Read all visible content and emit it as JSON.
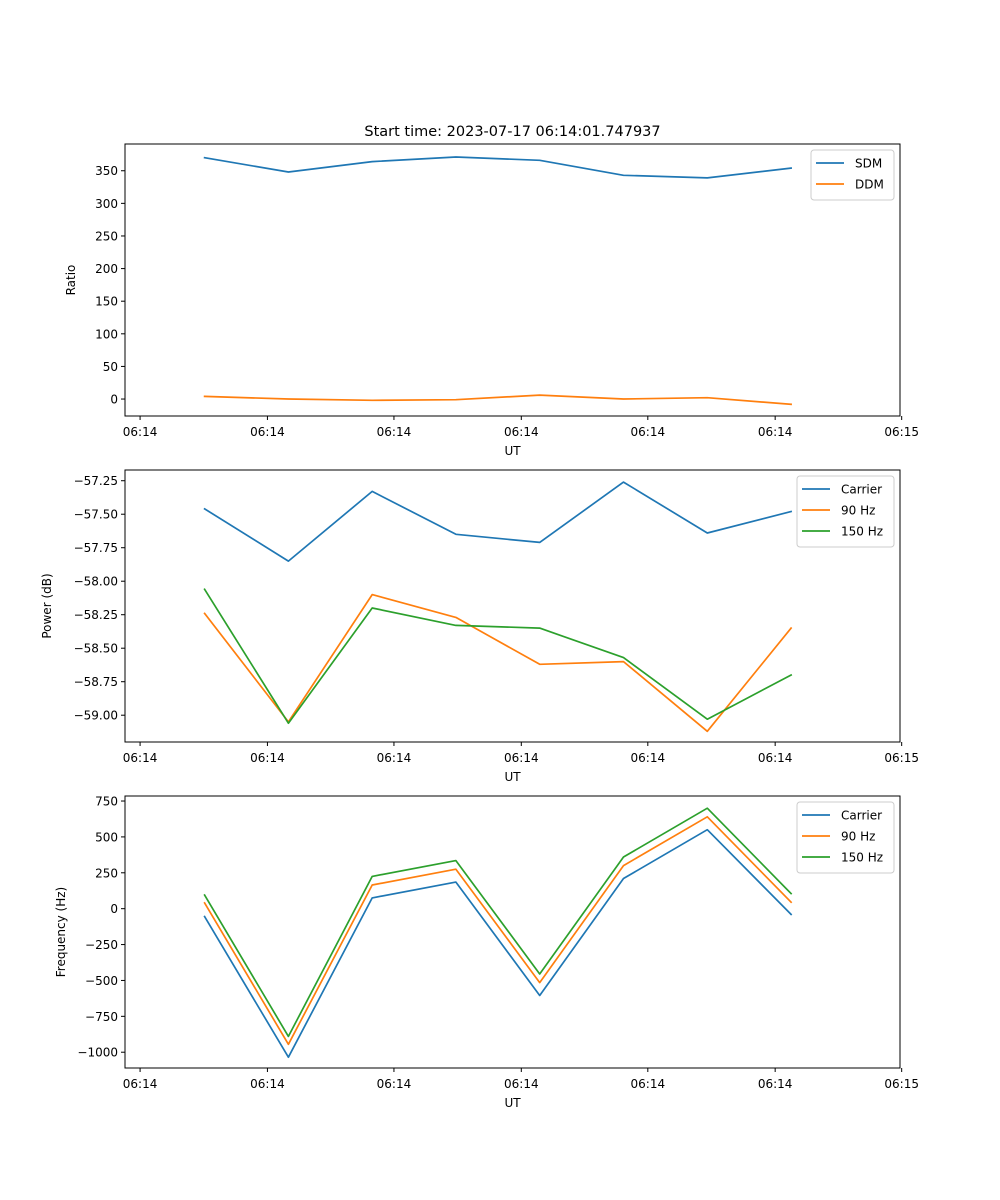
{
  "chart_data": [
    {
      "type": "line",
      "title": "Start time: 2023-07-17 06:14:01.747937",
      "xlabel": "UT",
      "ylabel": "Ratio",
      "x": [
        1,
        2,
        3,
        4,
        5,
        6,
        7,
        8
      ],
      "xlim": [
        0.05,
        9.3
      ],
      "x_ticks": [
        0.23,
        1.75,
        3.26,
        4.78,
        6.29,
        7.81,
        9.32
      ],
      "x_tick_labels": [
        "06:14",
        "06:14",
        "06:14",
        "06:14",
        "06:14",
        "06:14",
        "06:15"
      ],
      "ylim": [
        -26,
        391
      ],
      "y_ticks": [
        0,
        50,
        100,
        150,
        200,
        250,
        300,
        350
      ],
      "y_tick_labels": [
        "0",
        "50",
        "100",
        "150",
        "200",
        "250",
        "300",
        "350"
      ],
      "legend_position": "top-right",
      "series": [
        {
          "name": "SDM",
          "color": "#1f77b4",
          "values": [
            370,
            348,
            364,
            371,
            366,
            343,
            339,
            354
          ]
        },
        {
          "name": "DDM",
          "color": "#ff7f0e",
          "values": [
            4,
            0,
            -2,
            -1,
            6,
            0,
            2,
            -8
          ]
        }
      ]
    },
    {
      "type": "line",
      "title": "",
      "xlabel": "UT",
      "ylabel": "Power (dB)",
      "x": [
        1,
        2,
        3,
        4,
        5,
        6,
        7,
        8
      ],
      "xlim": [
        0.05,
        9.3
      ],
      "x_ticks": [
        0.23,
        1.75,
        3.26,
        4.78,
        6.29,
        7.81,
        9.32
      ],
      "x_tick_labels": [
        "06:14",
        "06:14",
        "06:14",
        "06:14",
        "06:14",
        "06:14",
        "06:15"
      ],
      "ylim": [
        -59.2,
        -57.17
      ],
      "y_ticks": [
        -59.0,
        -58.75,
        -58.5,
        -58.25,
        -58.0,
        -57.75,
        -57.5,
        -57.25
      ],
      "y_tick_labels": [
        "−59.00",
        "−58.75",
        "−58.50",
        "−58.25",
        "−58.00",
        "−57.75",
        "−57.50",
        "−57.25"
      ],
      "legend_position": "top-right",
      "series": [
        {
          "name": "Carrier",
          "color": "#1f77b4",
          "values": [
            -57.46,
            -57.85,
            -57.33,
            -57.65,
            -57.71,
            -57.26,
            -57.64,
            -57.48
          ]
        },
        {
          "name": "90 Hz",
          "color": "#ff7f0e",
          "values": [
            -58.24,
            -59.05,
            -58.1,
            -58.27,
            -58.62,
            -58.6,
            -59.12,
            -58.35
          ]
        },
        {
          "name": "150 Hz",
          "color": "#2ca02c",
          "values": [
            -58.06,
            -59.06,
            -58.2,
            -58.33,
            -58.35,
            -58.57,
            -59.03,
            -58.7
          ]
        }
      ]
    },
    {
      "type": "line",
      "title": "",
      "xlabel": "UT",
      "ylabel": "Frequency (Hz)",
      "x": [
        1,
        2,
        3,
        4,
        5,
        6,
        7,
        8
      ],
      "xlim": [
        0.05,
        9.3
      ],
      "x_ticks": [
        0.23,
        1.75,
        3.26,
        4.78,
        6.29,
        7.81,
        9.32
      ],
      "x_tick_labels": [
        "06:14",
        "06:14",
        "06:14",
        "06:14",
        "06:14",
        "06:14",
        "06:15"
      ],
      "ylim": [
        -1110,
        785
      ],
      "y_ticks": [
        -1000,
        -750,
        -500,
        -250,
        0,
        250,
        500,
        750
      ],
      "y_tick_labels": [
        "−1000",
        "−750",
        "−500",
        "−250",
        "0",
        "250",
        "500",
        "750"
      ],
      "legend_position": "top-right",
      "series": [
        {
          "name": "Carrier",
          "color": "#1f77b4",
          "values": [
            -55,
            -1035,
            75,
            185,
            -605,
            210,
            550,
            -40
          ]
        },
        {
          "name": "90 Hz",
          "color": "#ff7f0e",
          "values": [
            40,
            -945,
            165,
            275,
            -515,
            300,
            640,
            45
          ]
        },
        {
          "name": "150 Hz",
          "color": "#2ca02c",
          "values": [
            95,
            -890,
            225,
            335,
            -455,
            360,
            700,
            105
          ]
        }
      ]
    }
  ]
}
